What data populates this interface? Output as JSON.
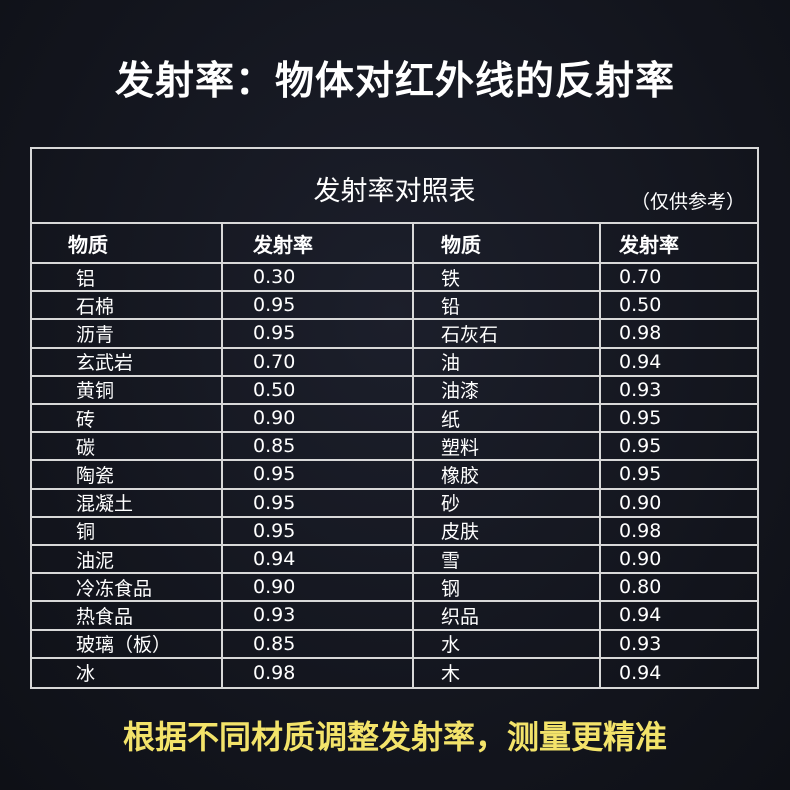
{
  "headline": "发射率：物体对红外线的反射率",
  "table": {
    "title": "发射率对照表",
    "note": "（仅供参考）",
    "headers": [
      "物质",
      "发射率",
      "物质",
      "发射率"
    ],
    "rows": [
      [
        "铝",
        "0.30",
        "铁",
        "0.70"
      ],
      [
        "石棉",
        "0.95",
        "铅",
        "0.50"
      ],
      [
        "沥青",
        "0.95",
        "石灰石",
        "0.98"
      ],
      [
        "玄武岩",
        "0.70",
        "油",
        "0.94"
      ],
      [
        "黄铜",
        "0.50",
        "油漆",
        "0.93"
      ],
      [
        "砖",
        "0.90",
        "纸",
        "0.95"
      ],
      [
        "碳",
        "0.85",
        "塑料",
        "0.95"
      ],
      [
        "陶瓷",
        "0.95",
        "橡胶",
        "0.95"
      ],
      [
        "混凝土",
        "0.95",
        "砂",
        "0.90"
      ],
      [
        "铜",
        "0.95",
        "皮肤",
        "0.98"
      ],
      [
        "油泥",
        "0.94",
        "雪",
        "0.90"
      ],
      [
        "冷冻食品",
        "0.90",
        "钢",
        "0.80"
      ],
      [
        " 热食品",
        "0.93",
        "织品",
        "0.94"
      ],
      [
        "玻璃（板）",
        "0.85",
        "水",
        "0.93"
      ],
      [
        "冰",
        "0.98",
        "木",
        "0.94"
      ]
    ]
  },
  "footer": "根据不同材质调整发射率，测量更精准",
  "colors": {
    "background": "#14161f",
    "footer_text": "#f3e36a",
    "grid": "#d8d8d8"
  }
}
